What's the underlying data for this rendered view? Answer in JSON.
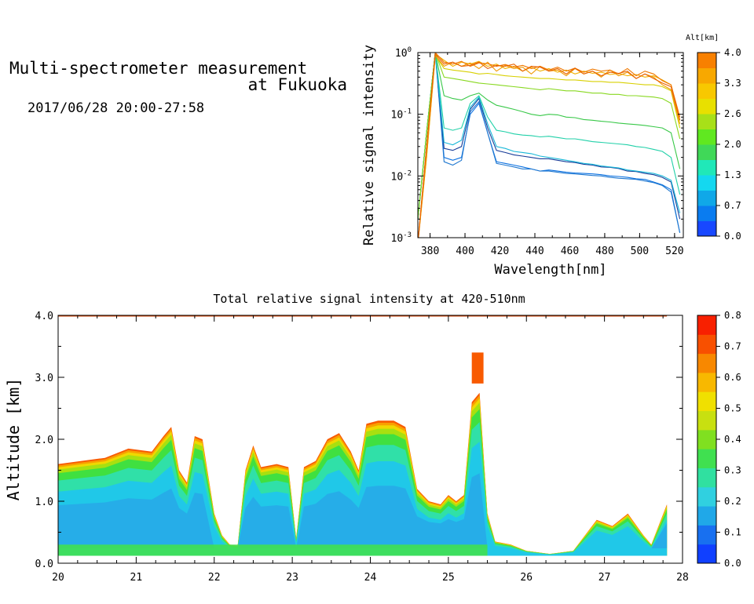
{
  "header": {
    "title_line1": "Multi-spectrometer measurement",
    "title_line2": "at Fukuoka",
    "date_range": "2017/06/28 20:00-27:58"
  },
  "chart_data": [
    {
      "type": "line",
      "title": "",
      "xlabel": "Wavelength[nm]",
      "ylabel": "Relative signal intensity",
      "yscale": "log",
      "xlim": [
        373,
        525
      ],
      "ylim": [
        0.001,
        1
      ],
      "x_ticks": [
        380,
        400,
        420,
        440,
        460,
        480,
        500,
        520
      ],
      "y_ticks": [
        {
          "value": 1,
          "base": "10",
          "exp": "0"
        },
        {
          "value": 0.1,
          "base": "10",
          "exp": "-1"
        },
        {
          "value": 0.01,
          "base": "10",
          "exp": "-2"
        },
        {
          "value": 0.001,
          "base": "10",
          "exp": "-3"
        }
      ],
      "x": [
        373,
        378,
        383,
        388,
        393,
        398,
        403,
        408,
        413,
        418,
        423,
        428,
        433,
        438,
        443,
        448,
        453,
        458,
        463,
        468,
        473,
        478,
        483,
        488,
        493,
        498,
        503,
        508,
        513,
        518,
        523
      ],
      "colorbar": {
        "label": "Alt[km]",
        "ticks": [
          "0.0",
          "0.7",
          "1.3",
          "2.0",
          "2.6",
          "3.3",
          "4.0"
        ],
        "colors": [
          "#1848ff",
          "#0a7cf0",
          "#10a8e8",
          "#14d8f0",
          "#20e8b8",
          "#40d858",
          "#60e820",
          "#a8e018",
          "#e8e000",
          "#f8c800",
          "#f8a800",
          "#f88000"
        ]
      },
      "series": [
        {
          "altitude": 0.2,
          "color": "#0a70e0",
          "values": [
            0.002,
            0.05,
            1.0,
            0.02,
            0.018,
            0.02,
            0.1,
            0.15,
            0.05,
            0.017,
            0.016,
            0.015,
            0.014,
            0.013,
            0.012,
            0.0125,
            0.012,
            0.0115,
            0.0112,
            0.011,
            0.0108,
            0.0105,
            0.01,
            0.0098,
            0.0095,
            0.009,
            0.0088,
            0.008,
            0.0072,
            0.006,
            0.0012
          ]
        },
        {
          "altitude": 0.5,
          "color": "#2078d0",
          "values": [
            0.002,
            0.05,
            1.0,
            0.017,
            0.015,
            0.018,
            0.11,
            0.16,
            0.05,
            0.016,
            0.015,
            0.014,
            0.013,
            0.013,
            0.012,
            0.012,
            0.0115,
            0.011,
            0.0108,
            0.0105,
            0.0102,
            0.01,
            0.0095,
            0.0092,
            0.009,
            0.0088,
            0.0083,
            0.0078,
            0.007,
            0.0055,
            0.0012
          ]
        },
        {
          "altitude": 0.8,
          "color": "#183c98",
          "values": [
            0.002,
            0.05,
            1.0,
            0.028,
            0.026,
            0.03,
            0.12,
            0.18,
            0.06,
            0.026,
            0.024,
            0.022,
            0.021,
            0.02,
            0.019,
            0.019,
            0.018,
            0.017,
            0.0165,
            0.0155,
            0.015,
            0.014,
            0.0138,
            0.0132,
            0.012,
            0.0118,
            0.011,
            0.0105,
            0.0095,
            0.008,
            0.002
          ]
        },
        {
          "altitude": 1.1,
          "color": "#18b8d8",
          "values": [
            0.002,
            0.05,
            1.0,
            0.035,
            0.032,
            0.038,
            0.13,
            0.19,
            0.07,
            0.03,
            0.028,
            0.025,
            0.024,
            0.023,
            0.021,
            0.02,
            0.019,
            0.018,
            0.017,
            0.016,
            0.0155,
            0.0145,
            0.014,
            0.0135,
            0.0125,
            0.012,
            0.0115,
            0.011,
            0.01,
            0.0085,
            0.0025
          ]
        },
        {
          "altitude": 1.4,
          "color": "#20d0a8",
          "values": [
            0.002,
            0.05,
            1.0,
            0.06,
            0.055,
            0.06,
            0.15,
            0.2,
            0.09,
            0.055,
            0.052,
            0.048,
            0.046,
            0.045,
            0.043,
            0.044,
            0.042,
            0.04,
            0.04,
            0.038,
            0.036,
            0.035,
            0.034,
            0.033,
            0.032,
            0.03,
            0.029,
            0.027,
            0.025,
            0.02,
            0.005
          ]
        },
        {
          "altitude": 1.8,
          "color": "#38c848",
          "values": [
            0.002,
            0.05,
            1.0,
            0.2,
            0.18,
            0.17,
            0.2,
            0.22,
            0.17,
            0.14,
            0.13,
            0.12,
            0.11,
            0.1,
            0.095,
            0.1,
            0.098,
            0.09,
            0.088,
            0.082,
            0.08,
            0.077,
            0.075,
            0.072,
            0.07,
            0.068,
            0.066,
            0.063,
            0.06,
            0.05,
            0.013
          ]
        },
        {
          "altitude": 2.2,
          "color": "#88d820",
          "values": [
            0.002,
            0.05,
            1.0,
            0.4,
            0.38,
            0.36,
            0.34,
            0.32,
            0.31,
            0.3,
            0.29,
            0.28,
            0.27,
            0.26,
            0.25,
            0.26,
            0.25,
            0.24,
            0.24,
            0.23,
            0.22,
            0.22,
            0.21,
            0.21,
            0.2,
            0.2,
            0.195,
            0.19,
            0.18,
            0.15,
            0.04
          ]
        },
        {
          "altitude": 2.8,
          "color": "#d8d000",
          "values": [
            0.0008,
            0.02,
            0.9,
            0.55,
            0.52,
            0.5,
            0.48,
            0.45,
            0.46,
            0.44,
            0.42,
            0.41,
            0.4,
            0.39,
            0.38,
            0.38,
            0.37,
            0.36,
            0.36,
            0.35,
            0.34,
            0.34,
            0.33,
            0.33,
            0.32,
            0.31,
            0.3,
            0.3,
            0.28,
            0.24,
            0.06
          ]
        },
        {
          "altitude": 3.2,
          "color": "#f0b000",
          "values": [
            0.0008,
            0.03,
            0.95,
            0.75,
            0.6,
            0.7,
            0.65,
            0.72,
            0.6,
            0.65,
            0.55,
            0.6,
            0.5,
            0.58,
            0.5,
            0.55,
            0.48,
            0.52,
            0.45,
            0.5,
            0.46,
            0.48,
            0.44,
            0.46,
            0.42,
            0.44,
            0.4,
            0.42,
            0.36,
            0.3,
            0.08
          ]
        },
        {
          "altitude": 3.5,
          "color": "#f09800",
          "values": [
            0.0008,
            0.02,
            0.9,
            0.6,
            0.7,
            0.6,
            0.68,
            0.55,
            0.7,
            0.5,
            0.62,
            0.55,
            0.58,
            0.45,
            0.6,
            0.5,
            0.52,
            0.42,
            0.55,
            0.45,
            0.5,
            0.4,
            0.52,
            0.42,
            0.48,
            0.38,
            0.45,
            0.4,
            0.3,
            0.25,
            0.07
          ]
        },
        {
          "altitude": 3.8,
          "color": "#f07800",
          "values": [
            0.0008,
            0.03,
            1.0,
            0.7,
            0.65,
            0.72,
            0.6,
            0.68,
            0.66,
            0.6,
            0.64,
            0.58,
            0.62,
            0.55,
            0.6,
            0.52,
            0.58,
            0.5,
            0.56,
            0.48,
            0.54,
            0.5,
            0.52,
            0.45,
            0.55,
            0.42,
            0.5,
            0.45,
            0.35,
            0.3,
            0.09
          ]
        },
        {
          "altitude": 4.0,
          "color": "#e86000",
          "values": [
            0.0008,
            0.03,
            0.95,
            0.65,
            0.7,
            0.6,
            0.62,
            0.7,
            0.55,
            0.62,
            0.6,
            0.65,
            0.5,
            0.6,
            0.58,
            0.5,
            0.55,
            0.45,
            0.56,
            0.45,
            0.5,
            0.42,
            0.48,
            0.46,
            0.5,
            0.38,
            0.45,
            0.38,
            0.32,
            0.28,
            0.08
          ]
        }
      ]
    },
    {
      "type": "heatmap",
      "title": "Total relative signal intensity at 420-510nm",
      "xlabel": "",
      "ylabel": "Altitude [km]",
      "xlim": [
        20,
        28
      ],
      "ylim": [
        0,
        4
      ],
      "x_ticks": [
        20,
        21,
        22,
        23,
        24,
        25,
        26,
        27,
        28
      ],
      "y_ticks": [
        "0.0",
        "1.0",
        "2.0",
        "3.0",
        "4.0"
      ],
      "colorbar": {
        "ticks": [
          "0.0",
          "0.1",
          "0.2",
          "0.3",
          "0.4",
          "0.5",
          "0.6",
          "0.7",
          "0.8"
        ],
        "range": [
          0,
          0.8
        ],
        "colors": [
          "#1040ff",
          "#1870f0",
          "#20a8e8",
          "#30d0e0",
          "#30e0a0",
          "#40e050",
          "#80e020",
          "#c8e010",
          "#f0e000",
          "#f8b800",
          "#f88800",
          "#f85000",
          "#f82000"
        ]
      },
      "profile_x": [
        20.0,
        20.3,
        20.6,
        20.9,
        21.2,
        21.35,
        21.45,
        21.55,
        21.65,
        21.75,
        21.85,
        22.0,
        22.1,
        22.2,
        22.3,
        22.4,
        22.5,
        22.6,
        22.8,
        22.95,
        23.05,
        23.15,
        23.3,
        23.45,
        23.6,
        23.75,
        23.85,
        23.95,
        24.1,
        24.3,
        24.45,
        24.6,
        24.75,
        24.9,
        25.0,
        25.1,
        25.2,
        25.3,
        25.4,
        25.5,
        25.6,
        25.8,
        26.0,
        26.3,
        26.6,
        26.9,
        27.1,
        27.3,
        27.5,
        27.6,
        27.8
      ],
      "cloud_top_km": [
        1.6,
        1.65,
        1.7,
        1.85,
        1.8,
        2.05,
        2.2,
        1.5,
        1.3,
        2.05,
        2.0,
        0.8,
        0.45,
        0.3,
        0.28,
        1.5,
        1.9,
        1.55,
        1.6,
        1.55,
        0.4,
        1.55,
        1.65,
        2.0,
        2.1,
        1.8,
        1.5,
        2.25,
        2.3,
        2.3,
        2.2,
        1.2,
        1.0,
        0.95,
        1.1,
        1.0,
        1.1,
        2.6,
        2.75,
        0.8,
        0.35,
        0.3,
        0.2,
        0.15,
        0.2,
        0.7,
        0.6,
        0.8,
        0.45,
        0.3,
        0.95
      ],
      "upper_echo": {
        "x": [
          25.3,
          25.45
        ],
        "y": [
          2.9,
          3.4
        ]
      }
    }
  ]
}
